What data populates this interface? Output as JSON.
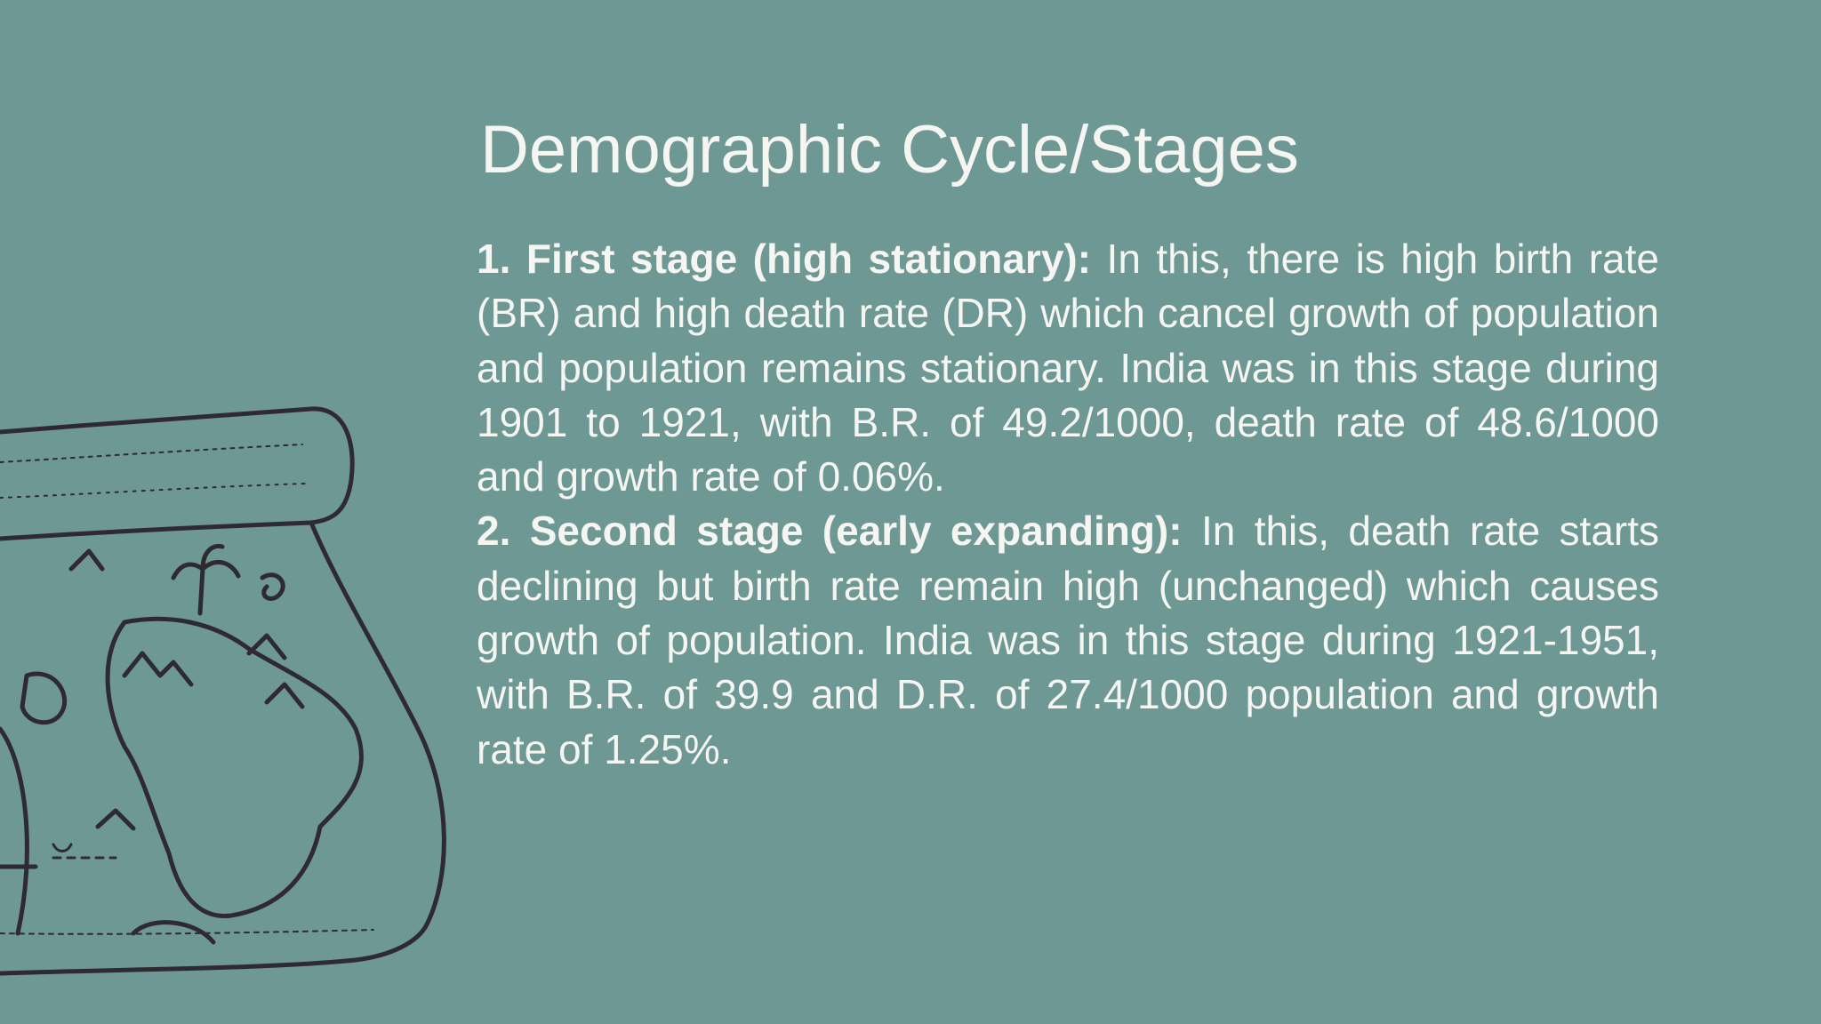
{
  "slide": {
    "title": "Demographic Cycle/Stages",
    "points": [
      {
        "heading": "1. First stage (high stationary):",
        "text": "In this, there is high birth rate (BR) and high death rate (DR) which cancel growth of population and population remains stationary. India was in this stage during 1901 to 1921, with B.R. of 49.2/1000, death rate of 48.6/1000 and growth rate of 0.06%."
      },
      {
        "heading": "2. Second stage (early expanding):",
        "text": "In this, death rate starts declining but birth rate remain high (unchanged) which causes growth of population. India was in this stage during 1921-1951, with B.R. of 39.9 and D.R. of 27.4/1000 population and growth rate of 1.25%."
      }
    ]
  }
}
